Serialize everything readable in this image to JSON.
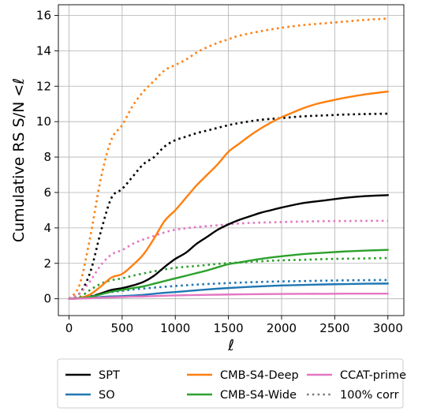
{
  "chart_data": {
    "type": "line",
    "xlabel": "ℓ",
    "ylabel": "Cumulative RS S/N <ℓ",
    "xlim": [
      -100,
      3150
    ],
    "ylim": [
      -0.95,
      16.6
    ],
    "xticks": [
      0,
      500,
      1000,
      1500,
      2000,
      2500,
      3000
    ],
    "yticks": [
      0,
      2,
      4,
      6,
      8,
      10,
      12,
      14,
      16
    ],
    "grid": true,
    "legend": {
      "placement": "bottom-outside",
      "ncol": 3,
      "entries": [
        {
          "label": "SPT",
          "color": "#000000",
          "style": "solid"
        },
        {
          "label": "SO",
          "color": "#1f77b4",
          "style": "solid"
        },
        {
          "label": "CMB-S4-Deep",
          "color": "#ff7f0e",
          "style": "solid"
        },
        {
          "label": "CMB-S4-Wide",
          "color": "#2ca02c",
          "style": "solid"
        },
        {
          "label": "CCAT-prime",
          "color": "#e377c2",
          "style": "solid"
        },
        {
          "label": "100% corr",
          "color": "#7f7f7f",
          "style": "dotted"
        }
      ]
    },
    "series": [
      {
        "name": "SPT",
        "color": "#000000",
        "style": "solid",
        "x": [
          0,
          100,
          200,
          300,
          400,
          500,
          600,
          700,
          800,
          900,
          1000,
          1100,
          1200,
          1300,
          1400,
          1500,
          1600,
          1700,
          1800,
          1900,
          2000,
          2200,
          2400,
          2600,
          2800,
          3000
        ],
        "y": [
          0,
          0.03,
          0.1,
          0.3,
          0.5,
          0.6,
          0.75,
          0.95,
          1.3,
          1.8,
          2.25,
          2.6,
          3.1,
          3.5,
          3.9,
          4.2,
          4.45,
          4.65,
          4.85,
          5.0,
          5.15,
          5.4,
          5.55,
          5.7,
          5.8,
          5.85
        ]
      },
      {
        "name": "SO",
        "color": "#1f77b4",
        "style": "solid",
        "x": [
          0,
          100,
          200,
          300,
          400,
          500,
          600,
          700,
          800,
          900,
          1000,
          1200,
          1400,
          1600,
          1800,
          2000,
          2200,
          2400,
          2600,
          2800,
          3000
        ],
        "y": [
          0,
          0.02,
          0.05,
          0.1,
          0.13,
          0.15,
          0.18,
          0.22,
          0.28,
          0.34,
          0.38,
          0.48,
          0.57,
          0.64,
          0.7,
          0.75,
          0.78,
          0.81,
          0.83,
          0.85,
          0.86
        ]
      },
      {
        "name": "CMB-S4-Deep",
        "color": "#ff7f0e",
        "style": "solid",
        "x": [
          0,
          100,
          200,
          300,
          400,
          500,
          600,
          700,
          800,
          900,
          1000,
          1100,
          1200,
          1300,
          1400,
          1500,
          1600,
          1700,
          1800,
          1900,
          2000,
          2100,
          2200,
          2300,
          2400,
          2600,
          2800,
          3000
        ],
        "y": [
          0,
          0.05,
          0.25,
          0.7,
          1.2,
          1.4,
          1.9,
          2.5,
          3.4,
          4.4,
          5.0,
          5.7,
          6.4,
          7.0,
          7.6,
          8.3,
          8.75,
          9.2,
          9.6,
          9.95,
          10.25,
          10.5,
          10.75,
          10.95,
          11.1,
          11.35,
          11.55,
          11.7
        ]
      },
      {
        "name": "CMB-S4-Wide",
        "color": "#2ca02c",
        "style": "solid",
        "x": [
          0,
          100,
          200,
          300,
          400,
          500,
          600,
          700,
          800,
          900,
          1000,
          1100,
          1200,
          1300,
          1400,
          1500,
          1600,
          1800,
          2000,
          2200,
          2400,
          2600,
          2800,
          3000
        ],
        "y": [
          0,
          0.03,
          0.1,
          0.25,
          0.4,
          0.5,
          0.6,
          0.7,
          0.85,
          1.0,
          1.15,
          1.3,
          1.45,
          1.6,
          1.78,
          1.95,
          2.05,
          2.25,
          2.4,
          2.52,
          2.6,
          2.67,
          2.72,
          2.76
        ]
      },
      {
        "name": "CCAT-prime",
        "color": "#e377c2",
        "style": "solid",
        "x": [
          0,
          100,
          200,
          300,
          400,
          500,
          600,
          700,
          800,
          900,
          1000,
          1200,
          1400,
          1600,
          1800,
          2000,
          2200,
          2400,
          2600,
          2800,
          3000
        ],
        "y": [
          0,
          0.01,
          0.03,
          0.06,
          0.08,
          0.1,
          0.12,
          0.13,
          0.15,
          0.17,
          0.19,
          0.21,
          0.23,
          0.25,
          0.26,
          0.27,
          0.28,
          0.28,
          0.29,
          0.29,
          0.29
        ]
      },
      {
        "name": "SPT 100% corr",
        "color": "#000000",
        "style": "dotted",
        "x": [
          0,
          100,
          200,
          300,
          400,
          500,
          600,
          700,
          800,
          900,
          1000,
          1100,
          1200,
          1300,
          1400,
          1500,
          1600,
          1800,
          2000,
          2200,
          2400,
          2600,
          2800,
          3000
        ],
        "y": [
          0,
          0.3,
          1.5,
          3.8,
          5.7,
          6.2,
          6.9,
          7.6,
          8.0,
          8.6,
          8.95,
          9.15,
          9.35,
          9.5,
          9.65,
          9.8,
          9.92,
          10.1,
          10.2,
          10.3,
          10.35,
          10.4,
          10.43,
          10.45
        ]
      },
      {
        "name": "SO 100% corr",
        "color": "#1f77b4",
        "style": "dotted",
        "x": [
          0,
          100,
          200,
          300,
          400,
          500,
          600,
          800,
          1000,
          1200,
          1400,
          1600,
          1800,
          2000,
          2200,
          2400,
          2600,
          2800,
          3000
        ],
        "y": [
          0,
          0.05,
          0.15,
          0.28,
          0.38,
          0.45,
          0.52,
          0.63,
          0.72,
          0.8,
          0.86,
          0.91,
          0.95,
          0.98,
          1.0,
          1.02,
          1.04,
          1.05,
          1.06
        ]
      },
      {
        "name": "CMB-S4-Deep 100% corr",
        "color": "#ff7f0e",
        "style": "dotted",
        "x": [
          0,
          100,
          200,
          300,
          400,
          500,
          600,
          700,
          800,
          900,
          1000,
          1100,
          1200,
          1300,
          1400,
          1500,
          1600,
          1800,
          2000,
          2200,
          2400,
          2600,
          2800,
          3000
        ],
        "y": [
          0,
          0.8,
          3.5,
          6.8,
          9.0,
          9.8,
          10.9,
          11.7,
          12.3,
          12.9,
          13.2,
          13.5,
          13.9,
          14.2,
          14.45,
          14.65,
          14.85,
          15.1,
          15.3,
          15.45,
          15.55,
          15.65,
          15.75,
          15.82
        ]
      },
      {
        "name": "CMB-S4-Wide 100% corr",
        "color": "#2ca02c",
        "style": "dotted",
        "x": [
          0,
          100,
          200,
          300,
          400,
          500,
          600,
          800,
          1000,
          1200,
          1400,
          1600,
          1800,
          2000,
          2200,
          2400,
          2600,
          2800,
          3000
        ],
        "y": [
          0,
          0.1,
          0.5,
          0.85,
          1.05,
          1.15,
          1.3,
          1.55,
          1.75,
          1.85,
          1.97,
          2.05,
          2.12,
          2.17,
          2.2,
          2.24,
          2.26,
          2.28,
          2.3
        ]
      },
      {
        "name": "CCAT-prime 100% corr",
        "color": "#e377c2",
        "style": "dotted",
        "x": [
          0,
          100,
          200,
          300,
          400,
          500,
          600,
          700,
          800,
          900,
          1000,
          1100,
          1200,
          1400,
          1600,
          1800,
          2000,
          2200,
          2400,
          2600,
          2800,
          3000
        ],
        "y": [
          0,
          0.3,
          1.0,
          1.9,
          2.5,
          2.75,
          3.1,
          3.35,
          3.55,
          3.75,
          3.9,
          3.98,
          4.05,
          4.15,
          4.25,
          4.3,
          4.33,
          4.36,
          4.38,
          4.39,
          4.4,
          4.4
        ]
      }
    ]
  }
}
